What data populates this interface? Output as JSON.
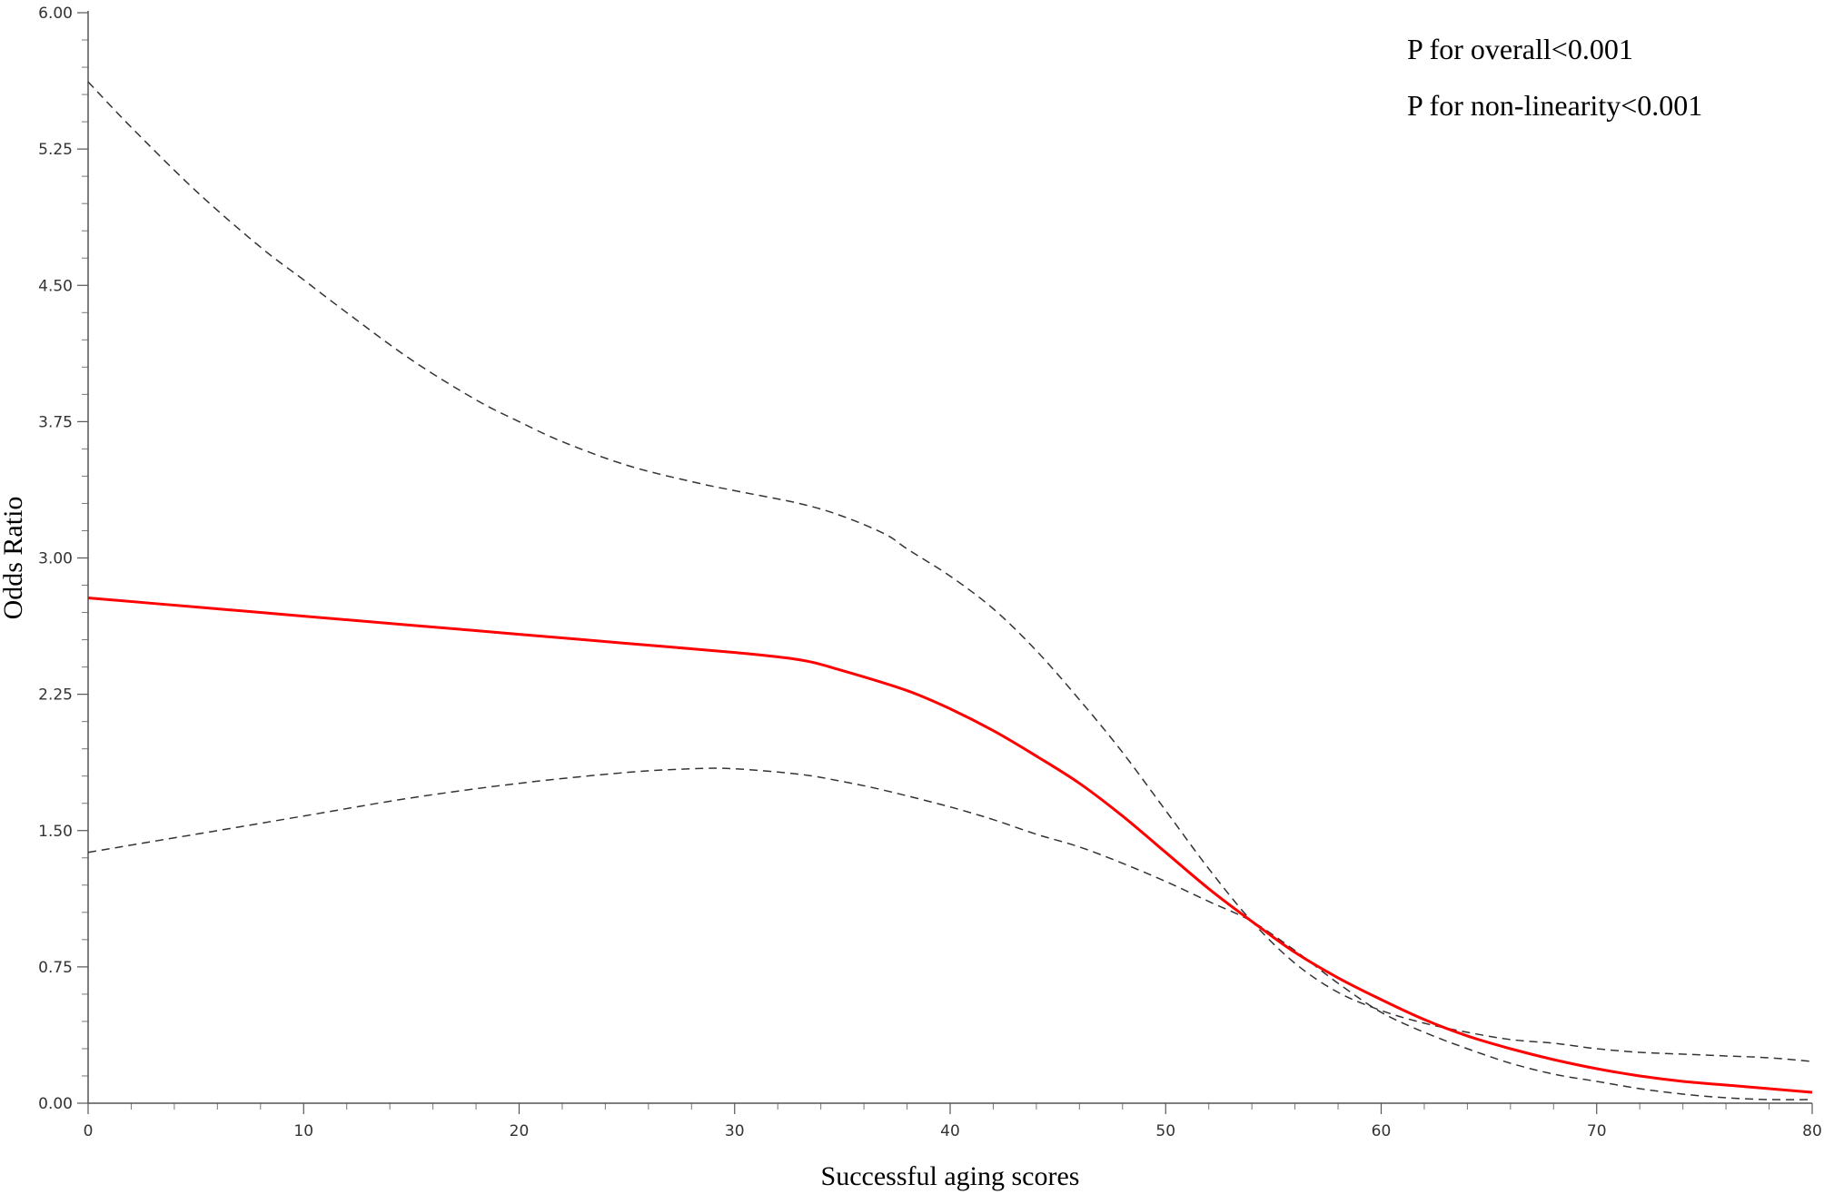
{
  "chart_data": {
    "type": "line",
    "title": "",
    "xlabel": "Successful aging scores",
    "ylabel": "Odds Ratio",
    "xlim": [
      0,
      80
    ],
    "ylim": [
      0,
      6
    ],
    "x_ticks": [
      0,
      10,
      20,
      30,
      40,
      50,
      60,
      70,
      80
    ],
    "x_tick_labels": [
      "0",
      "10",
      "20",
      "30",
      "40",
      "50",
      "60",
      "70",
      "80"
    ],
    "y_ticks": [
      0,
      0.75,
      1.5,
      2.25,
      3,
      3.75,
      4.5,
      5.25,
      6
    ],
    "y_tick_labels": [
      "0.00",
      "0.75",
      "1.50",
      "2.25",
      "3.00",
      "3.75",
      "4.50",
      "5.25",
      "6.00"
    ],
    "grid": false,
    "annotations": [
      "P for overall<0.001",
      "P for non-linearity<0.001"
    ],
    "colors": {
      "estimate": "#ff0000",
      "ci": "#333333"
    },
    "series": [
      {
        "role": "estimate",
        "style": "solid",
        "x": [
          0,
          5,
          10,
          15,
          20,
          25,
          30,
          33,
          35,
          38,
          40,
          42,
          44,
          46,
          48,
          50,
          52,
          54,
          56,
          58,
          60,
          62,
          64,
          66,
          68,
          70,
          72,
          74,
          76,
          78,
          80
        ],
        "y": [
          2.78,
          2.73,
          2.68,
          2.63,
          2.58,
          2.53,
          2.48,
          2.44,
          2.38,
          2.27,
          2.17,
          2.05,
          1.91,
          1.76,
          1.58,
          1.38,
          1.18,
          1.0,
          0.83,
          0.69,
          0.57,
          0.46,
          0.37,
          0.3,
          0.24,
          0.19,
          0.15,
          0.12,
          0.1,
          0.08,
          0.06
        ]
      },
      {
        "role": "ci-upper",
        "style": "dashed",
        "x": [
          0,
          2,
          5,
          8,
          10,
          12,
          15,
          18,
          20,
          22,
          25,
          28,
          30,
          33,
          35,
          37,
          38,
          40,
          42,
          44,
          46,
          48,
          50,
          52,
          54,
          56,
          58,
          60,
          62,
          64,
          66,
          68,
          70,
          72,
          74,
          76,
          78,
          80
        ],
        "y": [
          5.62,
          5.37,
          5.02,
          4.71,
          4.53,
          4.35,
          4.09,
          3.87,
          3.75,
          3.64,
          3.51,
          3.42,
          3.37,
          3.3,
          3.23,
          3.13,
          3.05,
          2.9,
          2.72,
          2.49,
          2.22,
          1.93,
          1.61,
          1.29,
          1.0,
          0.77,
          0.61,
          0.51,
          0.44,
          0.39,
          0.35,
          0.33,
          0.3,
          0.28,
          0.27,
          0.26,
          0.25,
          0.23
        ]
      },
      {
        "role": "ci-lower",
        "style": "dashed",
        "x": [
          0,
          5,
          10,
          15,
          20,
          25,
          28,
          30,
          33,
          35,
          37,
          40,
          42,
          44,
          46,
          48,
          50,
          52,
          54,
          56,
          58,
          60,
          62,
          64,
          66,
          68,
          70,
          72,
          74,
          76,
          78,
          80
        ],
        "y": [
          1.38,
          1.48,
          1.58,
          1.68,
          1.76,
          1.82,
          1.84,
          1.84,
          1.81,
          1.77,
          1.72,
          1.63,
          1.56,
          1.48,
          1.41,
          1.32,
          1.22,
          1.11,
          1.0,
          0.84,
          0.66,
          0.5,
          0.39,
          0.3,
          0.22,
          0.16,
          0.12,
          0.08,
          0.05,
          0.03,
          0.02,
          0.02
        ]
      }
    ]
  }
}
